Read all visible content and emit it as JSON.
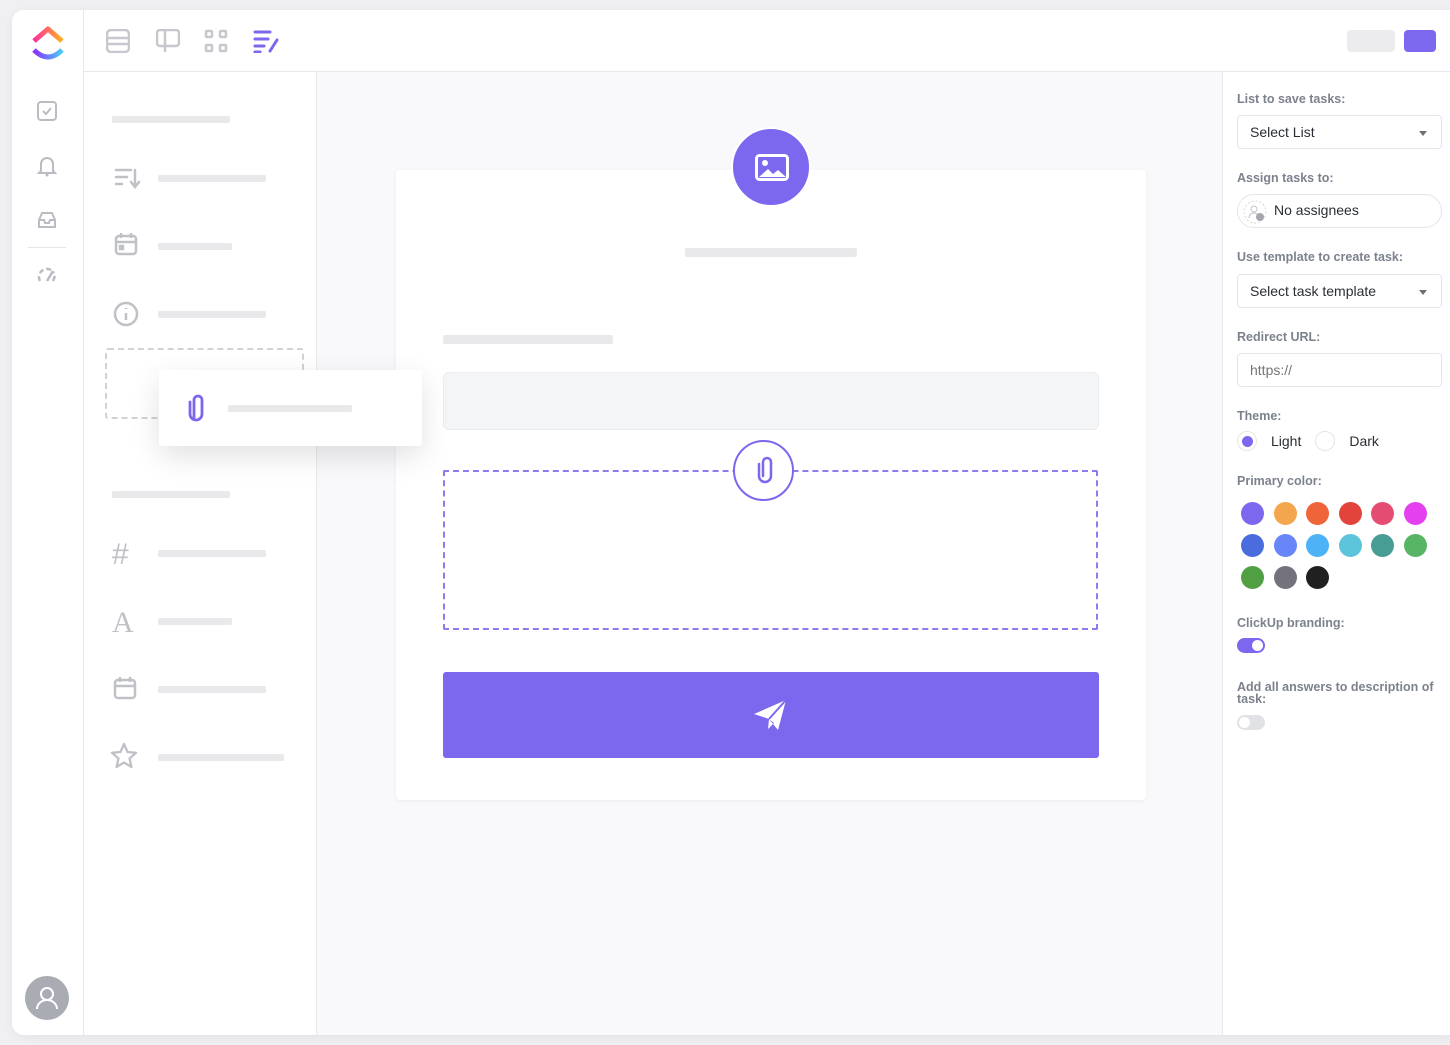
{
  "right_panel": {
    "list_label": "List to save tasks:",
    "list_value": "Select List",
    "assign_label": "Assign tasks to:",
    "assign_value": "No assignees",
    "template_label": "Use template to create task:",
    "template_value": "Select task template",
    "redirect_label": "Redirect URL:",
    "redirect_placeholder": "https://",
    "theme_label": "Theme:",
    "theme_options": [
      "Light",
      "Dark"
    ],
    "theme_selected": "Light",
    "color_label": "Primary color:",
    "colors": [
      "#7b68ee",
      "#f4a64d",
      "#ef6439",
      "#e2443b",
      "#e44c72",
      "#e440ef",
      "#4a6cdc",
      "#6886f7",
      "#4eb2f7",
      "#5cc5dc",
      "#479c93",
      "#58b565",
      "#50a043",
      "#74737d",
      "#202020"
    ],
    "selected_color": "#7b68ee",
    "branding_label": "ClickUp branding:",
    "branding_on": true,
    "answers_label": "Add all answers to description of task:",
    "answers_on": false
  },
  "colors": {
    "accent": "#7b68ee"
  }
}
